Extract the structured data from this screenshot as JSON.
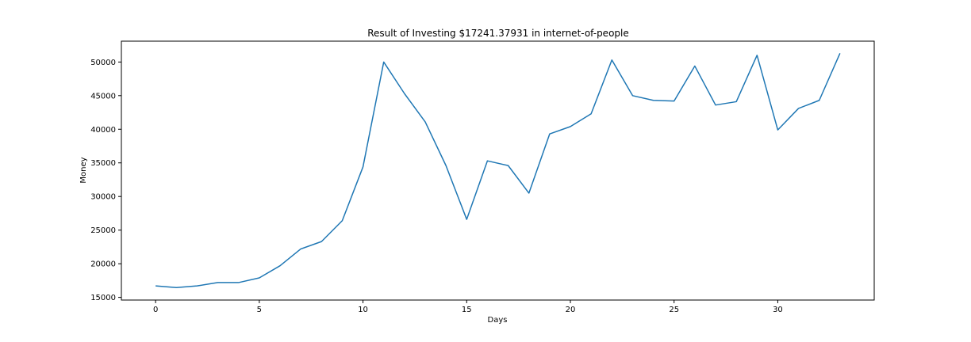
{
  "chart_data": {
    "type": "line",
    "title": "Result of Investing $17241.37931 in internet-of-people",
    "xlabel": "Days",
    "ylabel": "Money",
    "xlim": [
      -1.65,
      34.65
    ],
    "ylim": [
      14600,
      53100
    ],
    "xticks": [
      0,
      5,
      10,
      15,
      20,
      25,
      30
    ],
    "yticks": [
      15000,
      20000,
      25000,
      30000,
      35000,
      40000,
      45000,
      50000
    ],
    "grid": false,
    "legend": "none",
    "series": [
      {
        "color": "#1f77b4",
        "x": [
          0,
          1,
          2,
          3,
          4,
          5,
          6,
          7,
          8,
          9,
          10,
          11,
          12,
          13,
          14,
          15,
          16,
          17,
          18,
          19,
          20,
          21,
          22,
          23,
          24,
          25,
          26,
          27,
          28,
          29,
          30,
          31,
          32,
          33
        ],
        "y": [
          16700,
          16450,
          16700,
          17200,
          17200,
          17900,
          19700,
          22200,
          23300,
          26400,
          34400,
          50000,
          45300,
          41100,
          34600,
          26600,
          35300,
          34600,
          30500,
          39300,
          40400,
          42300,
          50300,
          45000,
          44300,
          44200,
          49400,
          43600,
          44100,
          51000,
          39900,
          43100,
          44300,
          51300
        ]
      }
    ]
  }
}
